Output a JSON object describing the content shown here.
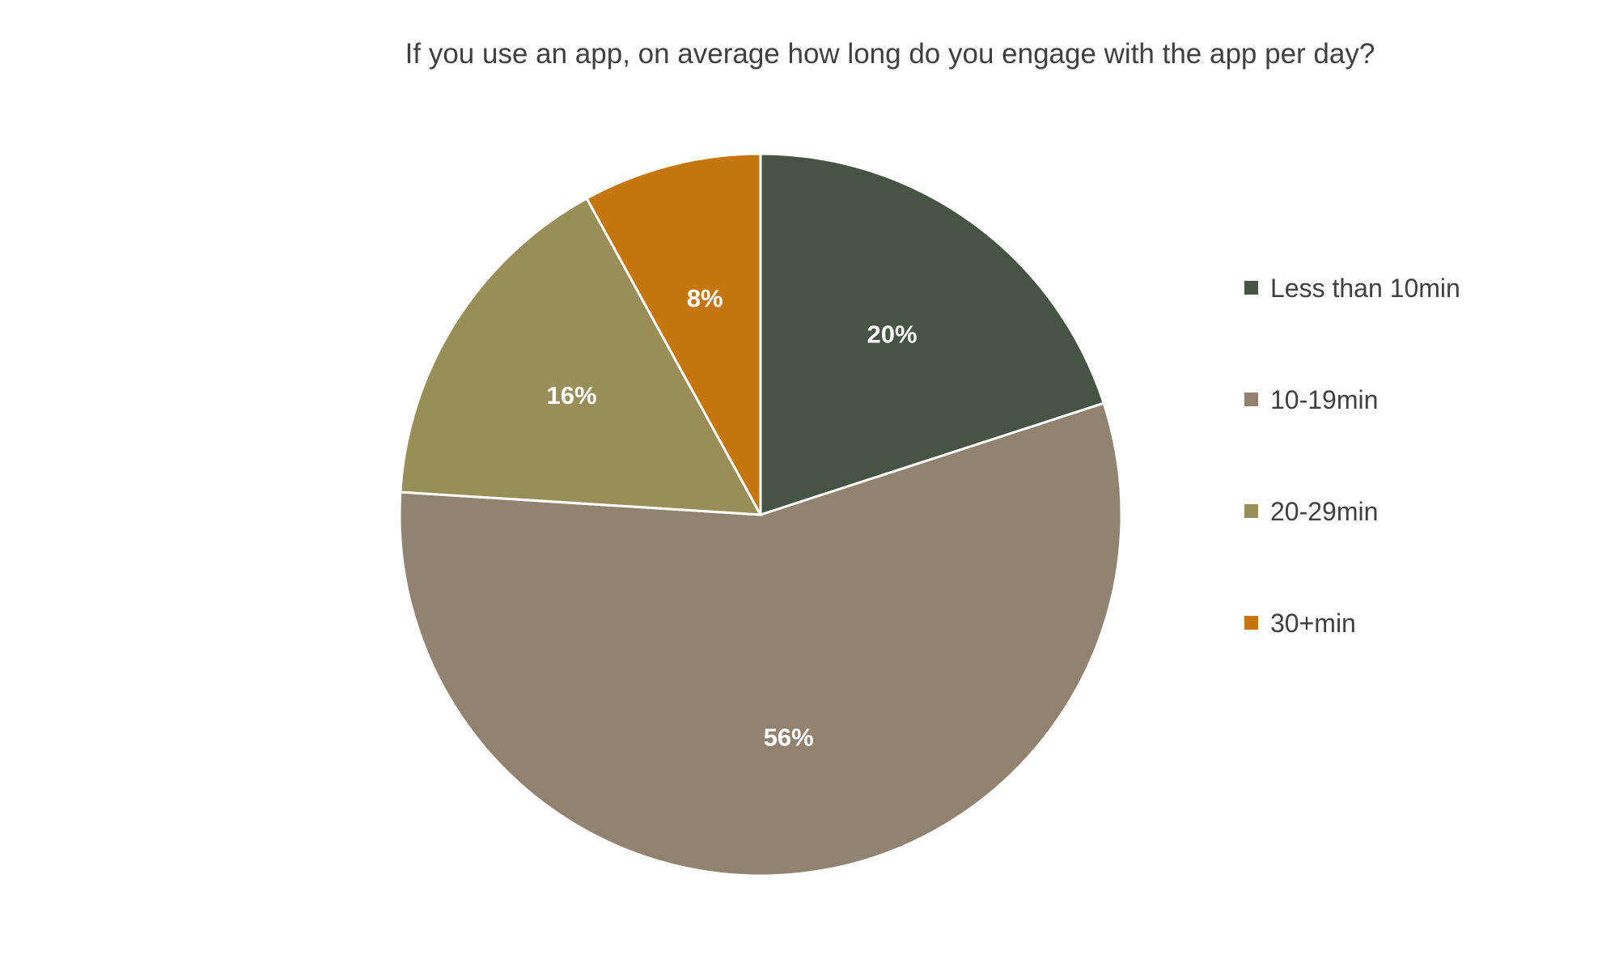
{
  "chart_data": {
    "type": "pie",
    "title": "If you use an app, on average how long do you engage with the app per day?",
    "categories": [
      "Less than 10min",
      "10-19min",
      "20-29min",
      "30+min"
    ],
    "values": [
      20,
      56,
      16,
      8
    ],
    "data_labels": [
      "20%",
      "56%",
      "16%",
      "8%"
    ],
    "colors": [
      "#465443",
      "#928270",
      "#998e57",
      "#c6760f"
    ],
    "legend_position": "right"
  }
}
